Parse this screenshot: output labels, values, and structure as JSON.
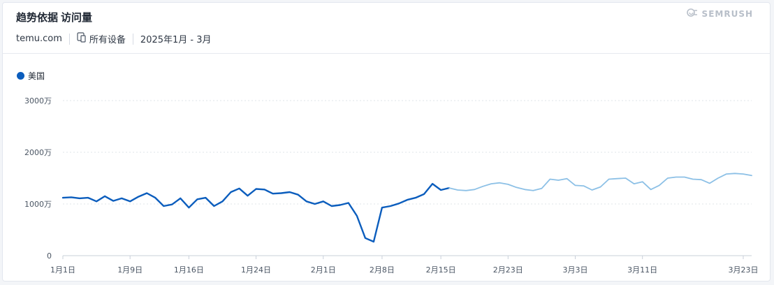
{
  "header": {
    "title": "趋势依据",
    "subtitle": "访问量",
    "domain": "temu.com",
    "device": "所有设备",
    "date_range": "2025年1月 - 3月",
    "brand": "SEMRUSH"
  },
  "colors": {
    "actual": "#0b5dbd",
    "forecast": "#8cc0e6",
    "grid": "#dfe4ea",
    "axis_text": "#4a5563"
  },
  "chart_data": {
    "type": "line",
    "legend": {
      "label": "美国",
      "placement": "top-left"
    },
    "ylim": [
      0,
      30000000
    ],
    "y_ticks": [
      0,
      10000000,
      20000000,
      30000000
    ],
    "y_tick_labels": [
      "0",
      "1000万",
      "2000万",
      "3000万"
    ],
    "x_start": "2025-01-01",
    "x_tick_dates": [
      "2025-01-01",
      "2025-01-09",
      "2025-01-16",
      "2025-01-24",
      "2025-02-01",
      "2025-02-08",
      "2025-02-15",
      "2025-02-23",
      "2025-03-03",
      "2025-03-11",
      "2025-03-23"
    ],
    "x_tick_labels": [
      "1月1日",
      "1月9日",
      "1月16日",
      "1月24日",
      "2月1日",
      "2月8日",
      "2月15日",
      "2月23日",
      "3月3日",
      "3月11日",
      "3月23日"
    ],
    "grid": true,
    "series": [
      {
        "name": "美国",
        "style": "actual",
        "points": [
          [
            "2025-01-01",
            11200000
          ],
          [
            "2025-01-02",
            11300000
          ],
          [
            "2025-01-03",
            11100000
          ],
          [
            "2025-01-04",
            11200000
          ],
          [
            "2025-01-05",
            10500000
          ],
          [
            "2025-01-06",
            11500000
          ],
          [
            "2025-01-07",
            10600000
          ],
          [
            "2025-01-08",
            11100000
          ],
          [
            "2025-01-09",
            10500000
          ],
          [
            "2025-01-10",
            11400000
          ],
          [
            "2025-01-11",
            12100000
          ],
          [
            "2025-01-12",
            11200000
          ],
          [
            "2025-01-13",
            9600000
          ],
          [
            "2025-01-14",
            9900000
          ],
          [
            "2025-01-15",
            11100000
          ],
          [
            "2025-01-16",
            9300000
          ],
          [
            "2025-01-17",
            10900000
          ],
          [
            "2025-01-18",
            11200000
          ],
          [
            "2025-01-19",
            9600000
          ],
          [
            "2025-01-20",
            10500000
          ],
          [
            "2025-01-21",
            12300000
          ],
          [
            "2025-01-22",
            13000000
          ],
          [
            "2025-01-23",
            11600000
          ],
          [
            "2025-01-24",
            12900000
          ],
          [
            "2025-01-25",
            12800000
          ],
          [
            "2025-01-26",
            12000000
          ],
          [
            "2025-01-27",
            12100000
          ],
          [
            "2025-01-28",
            12300000
          ],
          [
            "2025-01-29",
            11800000
          ],
          [
            "2025-01-30",
            10500000
          ],
          [
            "2025-01-31",
            10000000
          ],
          [
            "2025-02-01",
            10500000
          ],
          [
            "2025-02-02",
            9600000
          ],
          [
            "2025-02-03",
            9800000
          ],
          [
            "2025-02-04",
            10200000
          ],
          [
            "2025-02-05",
            7700000
          ],
          [
            "2025-02-06",
            3400000
          ],
          [
            "2025-02-07",
            2700000
          ],
          [
            "2025-02-08",
            9300000
          ],
          [
            "2025-02-09",
            9600000
          ],
          [
            "2025-02-10",
            10100000
          ],
          [
            "2025-02-11",
            10800000
          ],
          [
            "2025-02-12",
            11200000
          ],
          [
            "2025-02-13",
            11900000
          ],
          [
            "2025-02-14",
            13900000
          ],
          [
            "2025-02-15",
            12700000
          ],
          [
            "2025-02-16",
            13100000
          ]
        ]
      },
      {
        "name": "美国",
        "style": "forecast",
        "points": [
          [
            "2025-02-16",
            13100000
          ],
          [
            "2025-02-17",
            12700000
          ],
          [
            "2025-02-18",
            12600000
          ],
          [
            "2025-02-19",
            12800000
          ],
          [
            "2025-02-20",
            13400000
          ],
          [
            "2025-02-21",
            13900000
          ],
          [
            "2025-02-22",
            14100000
          ],
          [
            "2025-02-23",
            13800000
          ],
          [
            "2025-02-24",
            13200000
          ],
          [
            "2025-02-25",
            12800000
          ],
          [
            "2025-02-26",
            12600000
          ],
          [
            "2025-02-27",
            13000000
          ],
          [
            "2025-02-28",
            14800000
          ],
          [
            "2025-03-01",
            14600000
          ],
          [
            "2025-03-02",
            14900000
          ],
          [
            "2025-03-03",
            13600000
          ],
          [
            "2025-03-04",
            13500000
          ],
          [
            "2025-03-05",
            12700000
          ],
          [
            "2025-03-06",
            13300000
          ],
          [
            "2025-03-07",
            14800000
          ],
          [
            "2025-03-08",
            14900000
          ],
          [
            "2025-03-09",
            15000000
          ],
          [
            "2025-03-10",
            13900000
          ],
          [
            "2025-03-11",
            14300000
          ],
          [
            "2025-03-12",
            12800000
          ],
          [
            "2025-03-13",
            13600000
          ],
          [
            "2025-03-14",
            15000000
          ],
          [
            "2025-03-15",
            15200000
          ],
          [
            "2025-03-16",
            15200000
          ],
          [
            "2025-03-17",
            14800000
          ],
          [
            "2025-03-18",
            14700000
          ],
          [
            "2025-03-19",
            14000000
          ],
          [
            "2025-03-20",
            15000000
          ],
          [
            "2025-03-21",
            15800000
          ],
          [
            "2025-03-22",
            15900000
          ],
          [
            "2025-03-23",
            15800000
          ],
          [
            "2025-03-24",
            15500000
          ]
        ]
      }
    ]
  }
}
